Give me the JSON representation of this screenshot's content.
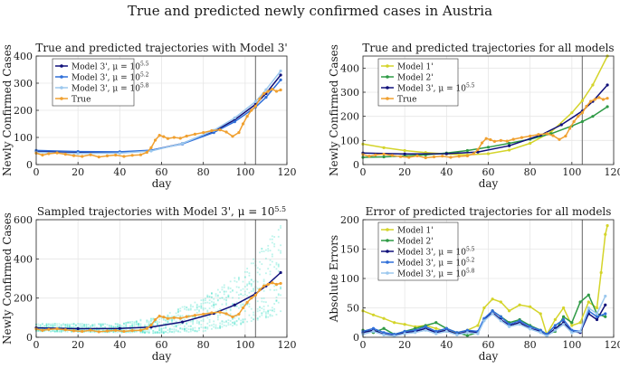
{
  "figure": {
    "title": "True and predicted newly confirmed cases in Austria"
  },
  "colors": {
    "true": "#F0A030",
    "model1": "#D4D42A",
    "model2": "#2E9A45",
    "model3_55": "#10107A",
    "model3_52": "#2F6FD9",
    "model3_58": "#9CC8EE",
    "cutoff": "#808080",
    "scatter": "#45E0C8"
  },
  "chart_data": [
    {
      "type": "line",
      "title": "True and predicted trajectories with Model 3'",
      "xlabel": "day",
      "ylabel": "Newly Confirmed Cases",
      "xlim": [
        0,
        120
      ],
      "ylim": [
        0,
        400
      ],
      "xticks": [
        0,
        20,
        40,
        60,
        80,
        100,
        120
      ],
      "yticks": [
        0,
        100,
        200,
        300,
        400
      ],
      "grid": true,
      "legend_position": "top-left",
      "cutoff_day": 105,
      "series": [
        {
          "name": "Model 3', μ = 10^5.5",
          "legend_html": "Model 3', μ = 10",
          "legend_sup": "5.5",
          "color_key": "model3_55",
          "marker": "dot",
          "x": [
            0,
            20,
            40,
            55,
            70,
            85,
            95,
            105,
            110,
            117
          ],
          "y": [
            48,
            44,
            45,
            52,
            78,
            122,
            165,
            222,
            262,
            330
          ]
        },
        {
          "name": "Model 3', μ = 10^5.2",
          "legend_html": "Model 3', μ = 10",
          "legend_sup": "5.2",
          "color_key": "model3_52",
          "marker": "dot",
          "x": [
            0,
            20,
            40,
            55,
            70,
            85,
            95,
            105,
            110,
            117
          ],
          "y": [
            52,
            48,
            47,
            53,
            76,
            118,
            158,
            212,
            248,
            312
          ]
        },
        {
          "name": "Model 3', μ = 10^5.8",
          "legend_html": "Model 3', μ = 10",
          "legend_sup": "5.8",
          "color_key": "model3_58",
          "marker": "dot",
          "x": [
            0,
            20,
            40,
            55,
            70,
            85,
            95,
            105,
            110,
            117
          ],
          "y": [
            45,
            41,
            42,
            50,
            78,
            126,
            172,
            232,
            276,
            345
          ]
        },
        {
          "name": "True",
          "legend_html": "True",
          "legend_sup": "",
          "color_key": "true",
          "marker": "dot",
          "x": [
            0,
            3,
            6,
            10,
            14,
            18,
            22,
            26,
            30,
            34,
            38,
            42,
            46,
            50,
            53,
            55,
            57,
            59,
            61,
            63,
            66,
            69,
            72,
            76,
            80,
            84,
            88,
            91,
            94,
            97,
            99,
            101,
            103,
            105,
            107,
            109,
            111,
            113,
            115,
            117
          ],
          "y": [
            42,
            35,
            40,
            43,
            38,
            33,
            30,
            36,
            28,
            32,
            35,
            30,
            34,
            36,
            45,
            62,
            90,
            108,
            103,
            96,
            100,
            97,
            105,
            112,
            118,
            125,
            128,
            120,
            104,
            118,
            150,
            178,
            200,
            215,
            242,
            262,
            270,
            278,
            270,
            275
          ]
        }
      ]
    },
    {
      "type": "line",
      "title": "True and predicted trajectories for all models",
      "xlabel": "day",
      "ylabel": "Newly Confirmed Cases",
      "xlim": [
        0,
        120
      ],
      "ylim": [
        0,
        450
      ],
      "xticks": [
        0,
        20,
        40,
        60,
        80,
        100,
        120
      ],
      "yticks": [
        0,
        100,
        200,
        300,
        400
      ],
      "grid": true,
      "legend_position": "top-left",
      "cutoff_day": 105,
      "series": [
        {
          "name": "Model 1'",
          "legend_html": "Model 1'",
          "legend_sup": "",
          "color_key": "model1",
          "marker": "dot",
          "x": [
            0,
            10,
            20,
            30,
            40,
            50,
            60,
            70,
            80,
            90,
            100,
            105,
            110,
            117
          ],
          "y": [
            85,
            70,
            58,
            50,
            44,
            40,
            45,
            60,
            88,
            135,
            215,
            265,
            330,
            460
          ]
        },
        {
          "name": "Model 2'",
          "legend_html": "Model 2'",
          "legend_sup": "",
          "color_key": "model2",
          "marker": "dot",
          "x": [
            0,
            10,
            20,
            30,
            40,
            50,
            60,
            70,
            80,
            90,
            100,
            105,
            110,
            117
          ],
          "y": [
            30,
            32,
            36,
            40,
            48,
            58,
            72,
            88,
            105,
            128,
            160,
            178,
            200,
            240
          ]
        },
        {
          "name": "Model 3', μ = 10^5.5",
          "legend_html": "Model 3', μ = 10",
          "legend_sup": "5.5",
          "color_key": "model3_55",
          "marker": "dot",
          "x": [
            0,
            20,
            40,
            55,
            70,
            85,
            95,
            105,
            110,
            117
          ],
          "y": [
            48,
            44,
            45,
            52,
            78,
            122,
            165,
            222,
            262,
            330
          ]
        },
        {
          "name": "True",
          "legend_html": "True",
          "legend_sup": "",
          "color_key": "true",
          "marker": "dot",
          "x": [
            0,
            3,
            6,
            10,
            14,
            18,
            22,
            26,
            30,
            34,
            38,
            42,
            46,
            50,
            53,
            55,
            57,
            59,
            61,
            63,
            66,
            69,
            72,
            76,
            80,
            84,
            88,
            91,
            94,
            97,
            99,
            101,
            103,
            105,
            107,
            109,
            111,
            113,
            115,
            117
          ],
          "y": [
            42,
            35,
            40,
            43,
            38,
            33,
            30,
            36,
            28,
            32,
            35,
            30,
            34,
            36,
            45,
            62,
            90,
            108,
            103,
            96,
            100,
            97,
            105,
            112,
            118,
            125,
            128,
            120,
            104,
            118,
            150,
            178,
            200,
            215,
            242,
            262,
            270,
            278,
            270,
            275
          ]
        }
      ]
    },
    {
      "type": "scatter",
      "title": "Sampled trajectories with Model 3', μ = 10^5.5",
      "title_html": "Sampled trajectories with Model 3', μ = 10",
      "title_sup": "5.5",
      "xlabel": "day",
      "ylabel": "Newly Confirmed Cases",
      "xlim": [
        0,
        120
      ],
      "ylim": [
        0,
        600
      ],
      "xticks": [
        0,
        20,
        40,
        60,
        80,
        100,
        120
      ],
      "yticks": [
        0,
        200,
        400,
        600
      ],
      "grid": true,
      "cutoff_day": 105,
      "sample_spread": [
        {
          "x": 0,
          "low": 30,
          "high": 70
        },
        {
          "x": 40,
          "low": 25,
          "high": 70
        },
        {
          "x": 60,
          "low": 20,
          "high": 110
        },
        {
          "x": 80,
          "low": 30,
          "high": 200
        },
        {
          "x": 100,
          "low": 70,
          "high": 350
        },
        {
          "x": 117,
          "low": 120,
          "high": 580
        }
      ],
      "series": [
        {
          "name": "Model 3', μ = 10^5.5",
          "color_key": "model3_55",
          "marker": "dot",
          "x": [
            0,
            20,
            40,
            55,
            70,
            85,
            95,
            105,
            110,
            117
          ],
          "y": [
            48,
            44,
            45,
            52,
            78,
            122,
            165,
            222,
            262,
            330
          ]
        },
        {
          "name": "True",
          "color_key": "true",
          "marker": "dot",
          "x": [
            0,
            3,
            6,
            10,
            14,
            18,
            22,
            26,
            30,
            34,
            38,
            42,
            46,
            50,
            53,
            55,
            57,
            59,
            61,
            63,
            66,
            69,
            72,
            76,
            80,
            84,
            88,
            91,
            94,
            97,
            99,
            101,
            103,
            105,
            107,
            109,
            111,
            113,
            115,
            117
          ],
          "y": [
            42,
            35,
            40,
            43,
            38,
            33,
            30,
            36,
            28,
            32,
            35,
            30,
            34,
            36,
            45,
            62,
            90,
            108,
            103,
            96,
            100,
            97,
            105,
            112,
            118,
            125,
            128,
            120,
            104,
            118,
            150,
            178,
            200,
            215,
            242,
            262,
            270,
            278,
            270,
            275
          ]
        }
      ]
    },
    {
      "type": "line",
      "title": "Error of predicted trajectories for all models",
      "xlabel": "day",
      "ylabel": "Absolute Errors",
      "xlim": [
        0,
        120
      ],
      "ylim": [
        0,
        200
      ],
      "xticks": [
        0,
        20,
        40,
        60,
        80,
        100,
        120
      ],
      "yticks": [
        0,
        50,
        100,
        150,
        200
      ],
      "grid": true,
      "legend_position": "top-left",
      "cutoff_day": 105,
      "series": [
        {
          "name": "Model 1'",
          "legend_html": "Model 1'",
          "legend_sup": "",
          "color_key": "model1",
          "marker": "dot",
          "x": [
            0,
            5,
            10,
            15,
            20,
            25,
            30,
            35,
            40,
            45,
            50,
            55,
            58,
            62,
            66,
            70,
            75,
            80,
            85,
            88,
            92,
            96,
            100,
            104,
            108,
            112,
            114,
            116,
            117
          ],
          "y": [
            45,
            38,
            32,
            25,
            22,
            18,
            20,
            15,
            10,
            8,
            12,
            20,
            50,
            65,
            60,
            45,
            55,
            52,
            40,
            5,
            30,
            50,
            20,
            25,
            60,
            50,
            110,
            175,
            190
          ]
        },
        {
          "name": "Model 2'",
          "legend_html": "Model 2'",
          "legend_sup": "",
          "color_key": "model2",
          "marker": "dot",
          "x": [
            0,
            5,
            10,
            15,
            20,
            25,
            30,
            35,
            40,
            45,
            50,
            55,
            58,
            62,
            66,
            70,
            75,
            80,
            85,
            88,
            92,
            96,
            100,
            104,
            108,
            112,
            116
          ],
          "y": [
            12,
            8,
            15,
            5,
            10,
            15,
            20,
            25,
            15,
            8,
            3,
            8,
            30,
            45,
            35,
            25,
            30,
            20,
            12,
            5,
            10,
            35,
            25,
            60,
            72,
            40,
            35
          ]
        },
        {
          "name": "Model 3', μ = 10^5.5",
          "legend_html": "Model 3', μ = 10",
          "legend_sup": "5.5",
          "color_key": "model3_55",
          "marker": "dot",
          "x": [
            0,
            5,
            10,
            15,
            20,
            25,
            30,
            35,
            40,
            45,
            50,
            55,
            58,
            62,
            66,
            70,
            75,
            80,
            85,
            88,
            92,
            96,
            100,
            104,
            108,
            112,
            116
          ],
          "y": [
            8,
            12,
            5,
            3,
            8,
            10,
            15,
            8,
            12,
            5,
            10,
            8,
            30,
            42,
            30,
            20,
            25,
            15,
            10,
            3,
            15,
            25,
            10,
            8,
            40,
            30,
            55
          ]
        },
        {
          "name": "Model 3', μ = 10^5.2",
          "legend_html": "Model 3', μ = 10",
          "legend_sup": "5.2",
          "color_key": "model3_52",
          "marker": "dot",
          "x": [
            0,
            5,
            10,
            15,
            20,
            25,
            30,
            35,
            40,
            45,
            50,
            55,
            58,
            62,
            66,
            70,
            75,
            80,
            85,
            88,
            92,
            96,
            100,
            104,
            108,
            112,
            116
          ],
          "y": [
            10,
            15,
            8,
            5,
            10,
            12,
            18,
            10,
            15,
            8,
            12,
            10,
            32,
            45,
            35,
            22,
            28,
            18,
            12,
            5,
            20,
            30,
            12,
            10,
            45,
            35,
            40
          ]
        },
        {
          "name": "Model 3', μ = 10^5.8",
          "legend_html": "Model 3', μ = 10",
          "legend_sup": "5.8",
          "color_key": "model3_58",
          "marker": "dot",
          "x": [
            0,
            5,
            10,
            15,
            20,
            25,
            30,
            35,
            40,
            45,
            50,
            55,
            58,
            62,
            66,
            70,
            75,
            80,
            85,
            88,
            92,
            96,
            100,
            104,
            108,
            112,
            116
          ],
          "y": [
            5,
            10,
            4,
            2,
            6,
            8,
            12,
            6,
            10,
            4,
            8,
            6,
            28,
            40,
            28,
            18,
            22,
            14,
            8,
            2,
            12,
            22,
            8,
            10,
            50,
            40,
            70
          ]
        }
      ]
    }
  ]
}
